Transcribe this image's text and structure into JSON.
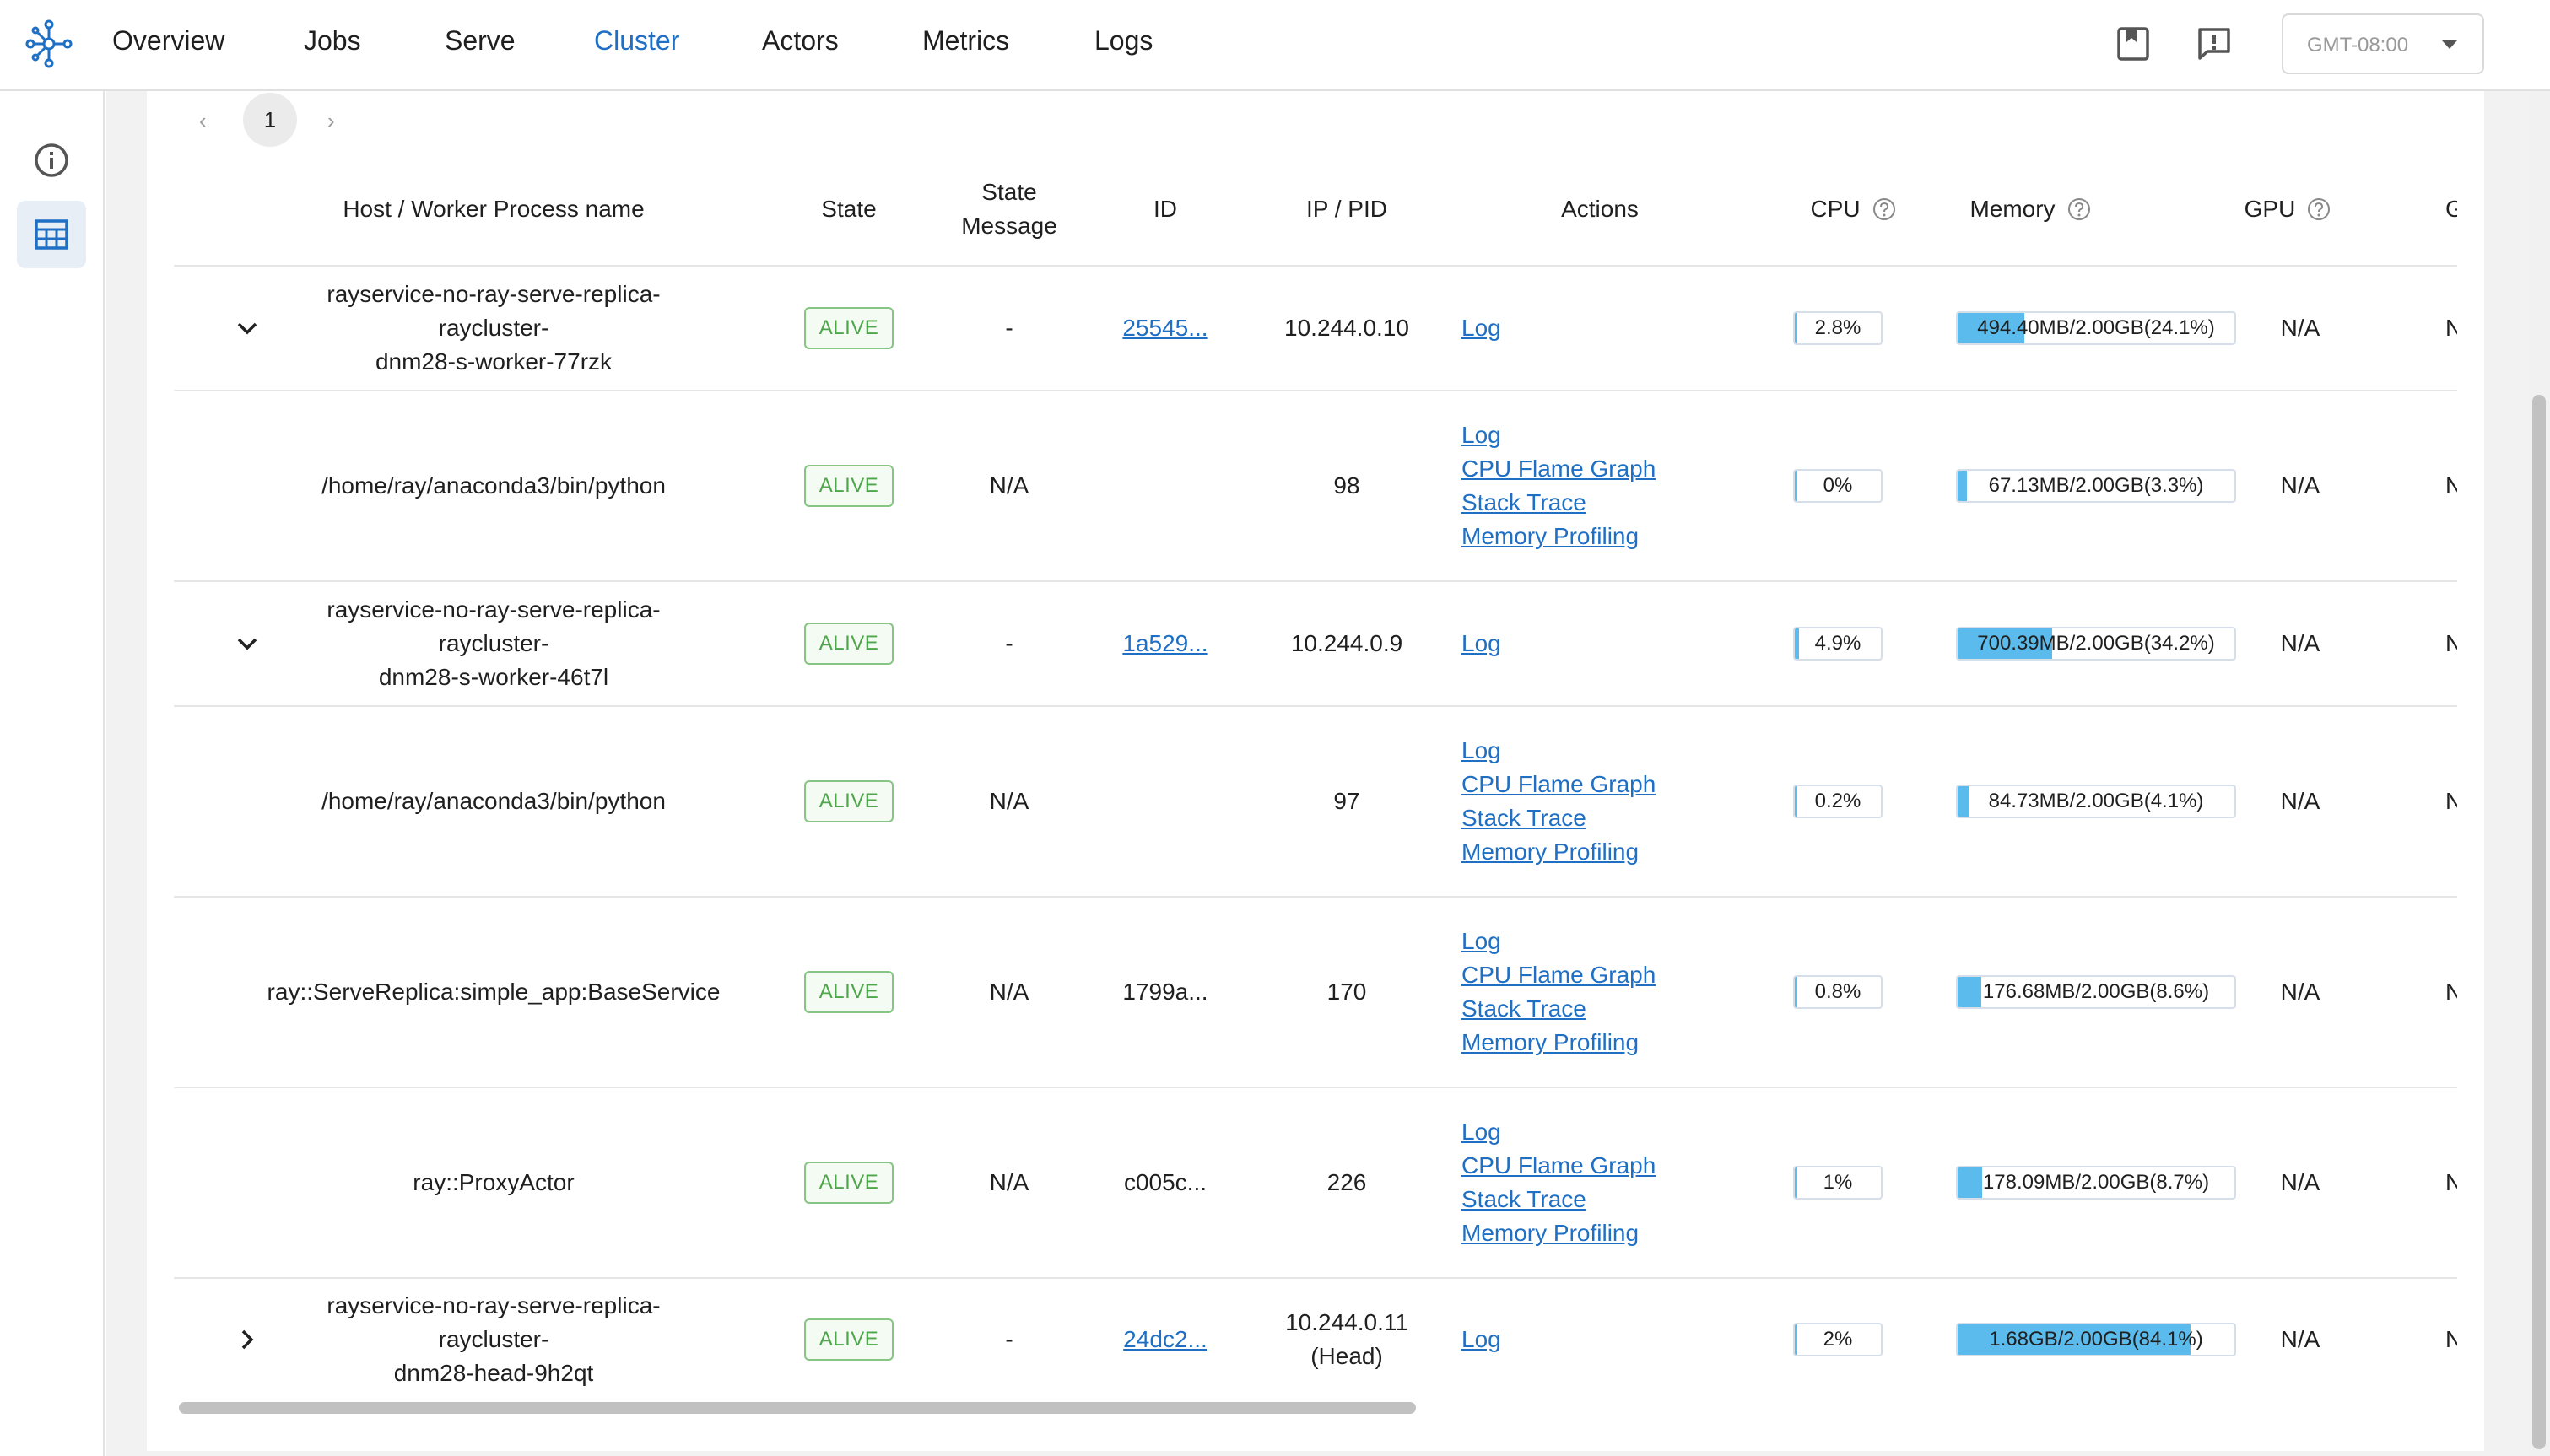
{
  "nav": {
    "items": [
      "Overview",
      "Jobs",
      "Serve",
      "Cluster",
      "Actors",
      "Metrics",
      "Logs"
    ],
    "active": "Cluster",
    "timezone": "GMT-08:00",
    "icons": [
      "docs-icon",
      "feedback-icon"
    ]
  },
  "sidebar": {
    "items": [
      {
        "icon": "info-icon",
        "active": false
      },
      {
        "icon": "table-icon",
        "active": true
      }
    ]
  },
  "pagination": {
    "prev": "‹",
    "page": "1",
    "next": "›"
  },
  "table": {
    "headers": {
      "name": "Host / Worker Process name",
      "state": "State",
      "state_message_1": "State",
      "state_message_2": "Message",
      "id": "ID",
      "ip_pid": "IP / PID",
      "actions": "Actions",
      "cpu": "CPU",
      "memory": "Memory",
      "gpu": "GPU",
      "next": "G"
    },
    "rows": [
      {
        "expander": "expanded",
        "name_1": "rayservice-no-ray-serve-replica-raycluster-",
        "name_2": "dnm28-s-worker-77rzk",
        "state": "ALIVE",
        "state_message": "-",
        "id": "25545...",
        "id_link": true,
        "ip_1": "10.244.0.10",
        "ip_2": "",
        "actions": [
          "Log"
        ],
        "cpu": "2.8%",
        "cpu_fraction": 0.028,
        "memory": "494.40MB/2.00GB(24.1%)",
        "memory_fraction": 0.241,
        "gpu": "N/A",
        "next": "N/"
      },
      {
        "expander": "none",
        "name_1": "/home/ray/anaconda3/bin/python",
        "name_2": "",
        "state": "ALIVE",
        "state_message": "N/A",
        "id": "",
        "id_link": false,
        "ip_1": "98",
        "ip_2": "",
        "actions": [
          "Log",
          "CPU Flame Graph",
          "Stack Trace",
          "Memory Profiling"
        ],
        "cpu": "0%",
        "cpu_fraction": 0.0,
        "memory": "67.13MB/2.00GB(3.3%)",
        "memory_fraction": 0.033,
        "gpu": "N/A",
        "next": "N/"
      },
      {
        "expander": "expanded",
        "name_1": "rayservice-no-ray-serve-replica-raycluster-",
        "name_2": "dnm28-s-worker-46t7l",
        "state": "ALIVE",
        "state_message": "-",
        "id": "1a529...",
        "id_link": true,
        "ip_1": "10.244.0.9",
        "ip_2": "",
        "actions": [
          "Log"
        ],
        "cpu": "4.9%",
        "cpu_fraction": 0.049,
        "memory": "700.39MB/2.00GB(34.2%)",
        "memory_fraction": 0.342,
        "gpu": "N/A",
        "next": "N/"
      },
      {
        "expander": "none",
        "name_1": "/home/ray/anaconda3/bin/python",
        "name_2": "",
        "state": "ALIVE",
        "state_message": "N/A",
        "id": "",
        "id_link": false,
        "ip_1": "97",
        "ip_2": "",
        "actions": [
          "Log",
          "CPU Flame Graph",
          "Stack Trace",
          "Memory Profiling"
        ],
        "cpu": "0.2%",
        "cpu_fraction": 0.002,
        "memory": "84.73MB/2.00GB(4.1%)",
        "memory_fraction": 0.041,
        "gpu": "N/A",
        "next": "N/"
      },
      {
        "expander": "none",
        "name_1": "ray::ServeReplica:simple_app:BaseService",
        "name_2": "",
        "state": "ALIVE",
        "state_message": "N/A",
        "id": "1799a...",
        "id_link": false,
        "ip_1": "170",
        "ip_2": "",
        "actions": [
          "Log",
          "CPU Flame Graph",
          "Stack Trace",
          "Memory Profiling"
        ],
        "cpu": "0.8%",
        "cpu_fraction": 0.008,
        "memory": "176.68MB/2.00GB(8.6%)",
        "memory_fraction": 0.086,
        "gpu": "N/A",
        "next": "N/"
      },
      {
        "expander": "none",
        "name_1": "ray::ProxyActor",
        "name_2": "",
        "state": "ALIVE",
        "state_message": "N/A",
        "id": "c005c...",
        "id_link": false,
        "ip_1": "226",
        "ip_2": "",
        "actions": [
          "Log",
          "CPU Flame Graph",
          "Stack Trace",
          "Memory Profiling"
        ],
        "cpu": "1%",
        "cpu_fraction": 0.01,
        "memory": "178.09MB/2.00GB(8.7%)",
        "memory_fraction": 0.087,
        "gpu": "N/A",
        "next": "N/"
      },
      {
        "expander": "collapsed",
        "name_1": "rayservice-no-ray-serve-replica-raycluster-",
        "name_2": "dnm28-head-9h2qt",
        "state": "ALIVE",
        "state_message": "-",
        "id": "24dc2...",
        "id_link": true,
        "ip_1": "10.244.0.11",
        "ip_2": "(Head)",
        "actions": [
          "Log"
        ],
        "cpu": "2%",
        "cpu_fraction": 0.02,
        "memory": "1.68GB/2.00GB(84.1%)",
        "memory_fraction": 0.841,
        "gpu": "N/A",
        "next": "N/"
      }
    ]
  },
  "colors": {
    "accent": "#1f6fc4",
    "alive_border": "#86c583",
    "alive_text": "#4da74a",
    "bar_fill": "#5bbbec"
  }
}
